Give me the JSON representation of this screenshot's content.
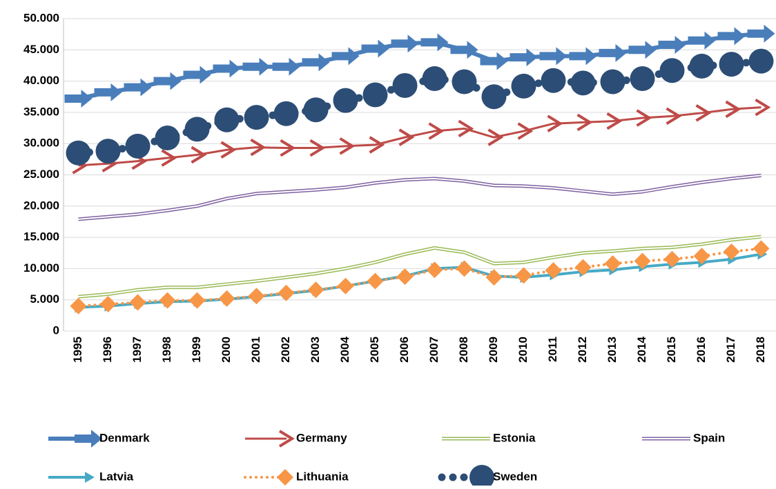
{
  "chart_data": {
    "type": "line",
    "categories": [
      "1995",
      "1996",
      "1997",
      "1998",
      "1999",
      "2000",
      "2001",
      "2002",
      "2003",
      "2004",
      "2005",
      "2006",
      "2007",
      "2008",
      "2009",
      "2010",
      "2011",
      "2012",
      "2013",
      "2014",
      "2015",
      "2016",
      "2017",
      "2018"
    ],
    "ylim": [
      0,
      50000
    ],
    "yticks": [
      0,
      {
        "value": 5000,
        "label": "5.000"
      },
      {
        "value": 10000,
        "label": "10.000"
      },
      {
        "value": 15000,
        "label": "15.000"
      },
      {
        "value": 20000,
        "label": "20.000"
      },
      {
        "value": 25000,
        "label": "25.000"
      },
      {
        "value": 30000,
        "label": "30.000"
      },
      {
        "value": 35000,
        "label": "35.000"
      },
      {
        "value": 40000,
        "label": "40.000"
      },
      {
        "value": 45000,
        "label": "45.000"
      },
      {
        "value": 50000,
        "label": "50.000"
      }
    ],
    "grid": true,
    "legend": "bottom",
    "series": [
      {
        "name": "Denmark",
        "color": "#4a7ebb",
        "marker": "arrow",
        "values": [
          37200,
          38200,
          39000,
          40000,
          41000,
          42000,
          42300,
          42300,
          43000,
          44000,
          45200,
          46000,
          46200,
          45000,
          43200,
          43800,
          44000,
          44000,
          44500,
          45000,
          45800,
          46500,
          47200,
          47600
        ]
      },
      {
        "name": "Germany",
        "color": "#be4b48",
        "marker": "chevron",
        "values": [
          26500,
          26800,
          27200,
          27700,
          28200,
          29000,
          29400,
          29300,
          29300,
          29600,
          29800,
          31000,
          32000,
          32400,
          31000,
          32000,
          33200,
          33400,
          33600,
          34100,
          34400,
          34900,
          35500,
          35800
        ]
      },
      {
        "name": "Estonia",
        "color": "#98b954",
        "marker": "double",
        "values": [
          5500,
          5900,
          6600,
          7000,
          7000,
          7500,
          8000,
          8600,
          9200,
          10000,
          11000,
          12300,
          13300,
          12600,
          10800,
          11000,
          11800,
          12500,
          12800,
          13200,
          13400,
          13900,
          14600,
          15100
        ]
      },
      {
        "name": "Spain",
        "color": "#7d60a0",
        "marker": "double",
        "values": [
          17900,
          18300,
          18700,
          19300,
          20000,
          21200,
          22000,
          22300,
          22600,
          23000,
          23700,
          24200,
          24400,
          24000,
          23300,
          23200,
          22900,
          22400,
          21900,
          22300,
          23100,
          23800,
          24400,
          24900
        ]
      },
      {
        "name": "Latvia",
        "color": "#46aac5",
        "marker": "small-arrow",
        "values": [
          3800,
          4000,
          4400,
          4700,
          4800,
          5100,
          5500,
          6000,
          6500,
          7200,
          8000,
          8800,
          10000,
          10200,
          8800,
          8600,
          9000,
          9500,
          9800,
          10300,
          10700,
          11000,
          11500,
          12300
        ]
      },
      {
        "name": "Lithuania",
        "color": "#f79646",
        "marker": "diamond",
        "values": [
          4000,
          4300,
          4600,
          4900,
          4900,
          5200,
          5600,
          6100,
          6600,
          7200,
          8000,
          8700,
          9800,
          10000,
          8600,
          8900,
          9700,
          10200,
          10800,
          11200,
          11500,
          12000,
          12700,
          13200
        ]
      },
      {
        "name": "Sweden",
        "color": "#2c4d75",
        "marker": "circle",
        "values": [
          28500,
          28800,
          29600,
          30900,
          32300,
          33800,
          34200,
          34800,
          35400,
          36900,
          37800,
          39300,
          40400,
          39900,
          37500,
          39200,
          40100,
          39700,
          39900,
          40400,
          41700,
          42400,
          42700,
          43200
        ]
      }
    ]
  }
}
